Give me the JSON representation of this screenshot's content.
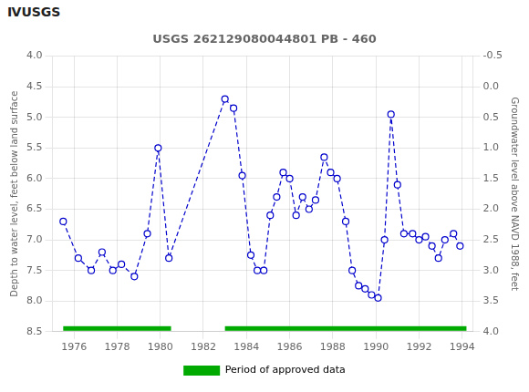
{
  "chart_data": {
    "type": "line",
    "title": "USGS 262129080044801 PB - 460",
    "annotations": [
      "ⅣUSGS"
    ],
    "ylabel": "Depth to water level, feet below land surface",
    "y2label": "Groundwater level above NAVD 1988, feet",
    "x": [
      1975.5,
      1976.2,
      1976.8,
      1977.3,
      1977.8,
      1978.2,
      1978.8,
      1979.4,
      1979.9,
      1980.4,
      1983.0,
      1983.4,
      1983.8,
      1984.2,
      1984.5,
      1984.8,
      1985.1,
      1985.4,
      1985.7,
      1986.0,
      1986.3,
      1986.6,
      1986.9,
      1987.2,
      1987.6,
      1987.9,
      1988.2,
      1988.6,
      1988.9,
      1989.2,
      1989.5,
      1989.8,
      1990.1,
      1990.4,
      1990.7,
      1991.0,
      1991.3,
      1991.7,
      1992.0,
      1992.3,
      1992.6,
      1992.9,
      1993.2,
      1993.6,
      1993.9
    ],
    "series": [
      {
        "values": [
          6.7,
          7.3,
          7.5,
          7.2,
          7.5,
          7.4,
          7.6,
          6.9,
          5.5,
          7.3,
          4.7,
          4.85,
          5.95,
          7.25,
          7.5,
          7.5,
          6.6,
          6.3,
          5.9,
          6.0,
          6.6,
          6.3,
          6.5,
          6.35,
          5.65,
          5.9,
          6.0,
          6.7,
          7.5,
          7.75,
          7.8,
          7.9,
          7.95,
          7.0,
          4.95,
          6.1,
          6.9,
          6.9,
          7.0,
          6.95,
          7.1,
          7.3,
          7.0,
          6.9,
          7.1
        ],
        "color": "#0000cc",
        "marker": "circle",
        "line_style": "dashed"
      }
    ],
    "approved_periods": [
      {
        "name": "Period of approved data",
        "color": "#00aa00",
        "ranges": [
          [
            1975.5,
            1980.5
          ],
          [
            1983.0,
            1994.2
          ]
        ]
      }
    ],
    "xlim": [
      1975.0,
      1994.5
    ],
    "xticks": [
      1976,
      1978,
      1980,
      1982,
      1984,
      1986,
      1988,
      1990,
      1992,
      1994
    ],
    "ylim": [
      8.5,
      4.0
    ],
    "yticks": [
      {
        "value": 4.0,
        "label": "4.0"
      },
      4.5,
      {
        "value": 5.0,
        "label": "5.0"
      },
      5.5,
      {
        "value": 6.0,
        "label": "6.0"
      },
      6.5,
      {
        "value": 7.0,
        "label": "7.0"
      },
      7.5,
      {
        "value": 8.0,
        "label": "8.0"
      },
      8.5
    ],
    "y2lim": [
      4.0,
      -0.5
    ],
    "y2ticks": [
      {
        "value": 4.0,
        "label": "4.0"
      },
      3.5,
      {
        "value": 3.0,
        "label": "3.0"
      },
      2.5,
      {
        "value": 2.0,
        "label": "2.0"
      },
      1.5,
      {
        "value": 1.0,
        "label": "1.0"
      },
      0.5,
      {
        "value": 0.0,
        "label": "0.0"
      },
      -0.5
    ],
    "grid": true,
    "legend": "bottom"
  }
}
